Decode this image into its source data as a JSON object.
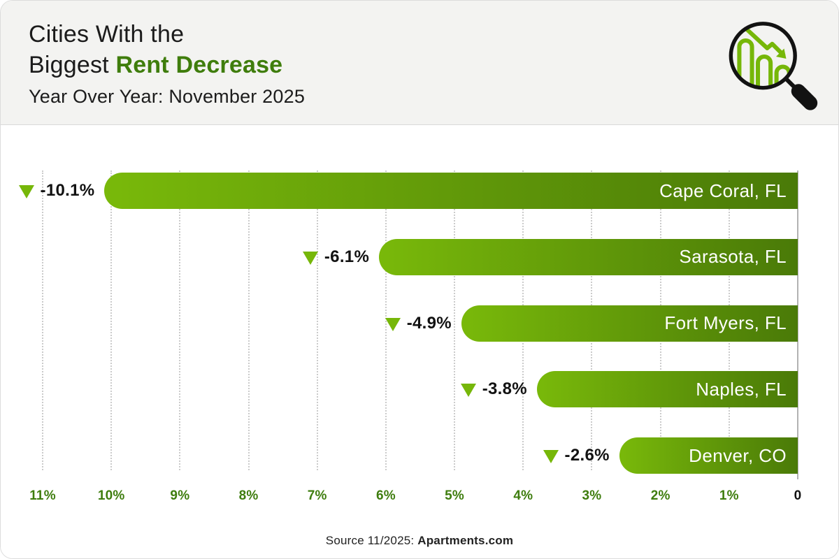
{
  "header": {
    "title_line1": "Cities With the",
    "title_line2_prefix": "Biggest ",
    "title_line2_highlight": "Rent Decrease",
    "subtitle": "Year Over Year: November 2025"
  },
  "chart_data": {
    "type": "bar",
    "orientation": "horizontal",
    "title": "Cities With the Biggest Rent Decrease",
    "subtitle": "Year Over Year: November 2025",
    "categories": [
      "Cape Coral, FL",
      "Sarasota, FL",
      "Fort Myers, FL",
      "Naples, FL",
      "Denver, CO"
    ],
    "values": [
      -10.1,
      -6.1,
      -4.9,
      -3.8,
      -2.6
    ],
    "value_labels": [
      "-10.1%",
      "-6.1%",
      "-4.9%",
      "-3.8%",
      "-2.6%"
    ],
    "axis": {
      "ticks": [
        "11%",
        "10%",
        "9%",
        "8%",
        "7%",
        "6%",
        "5%",
        "4%",
        "3%",
        "2%",
        "1%",
        "0"
      ],
      "tick_values": [
        11,
        10,
        9,
        8,
        7,
        6,
        5,
        4,
        3,
        2,
        1,
        0
      ],
      "min": 0,
      "max": 11,
      "reversed": true
    },
    "grid": "dotted-vertical",
    "legend": "none",
    "colors": {
      "bar_gradient_start": "#79b90a",
      "bar_gradient_end": "#4a7a08",
      "triangle": "#76b709",
      "tick_label": "#3e7d0e",
      "zero_tick_label": "#121212",
      "title_highlight": "#3f7d0c"
    }
  },
  "footer": {
    "source_prefix": "Source 11/2025: ",
    "source_bold": "Apartments.com"
  },
  "icons": {
    "logo": "magnifier-declining-bar-chart-icon"
  }
}
